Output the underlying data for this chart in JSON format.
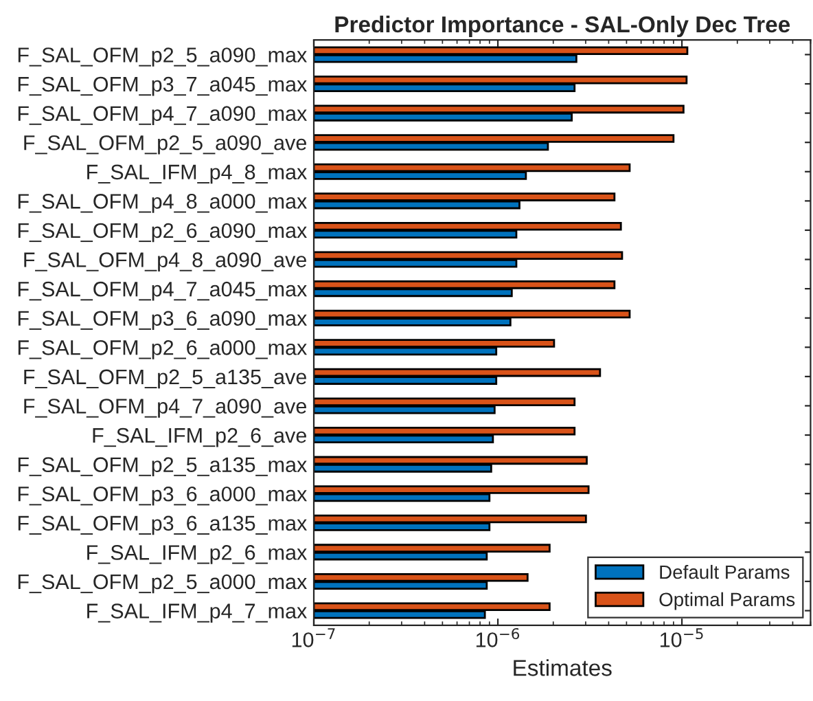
{
  "chart_data": {
    "type": "bar",
    "orientation": "horizontal",
    "title": "Predictor Importance - SAL-Only Dec Tree",
    "xlabel": "Estimates",
    "categories": [
      "F_SAL_OFM_p2_5_a090_max",
      "F_SAL_OFM_p3_7_a045_max",
      "F_SAL_OFM_p4_7_a090_max",
      "F_SAL_OFM_p2_5_a090_ave",
      "F_SAL_IFM_p4_8_max",
      "F_SAL_OFM_p4_8_a000_max",
      "F_SAL_OFM_p2_6_a090_max",
      "F_SAL_OFM_p4_8_a090_ave",
      "F_SAL_OFM_p4_7_a045_max",
      "F_SAL_OFM_p3_6_a090_max",
      "F_SAL_OFM_p2_6_a000_max",
      "F_SAL_OFM_p2_5_a135_ave",
      "F_SAL_OFM_p4_7_a090_ave",
      "F_SAL_IFM_p2_6_ave",
      "F_SAL_OFM_p2_5_a135_max",
      "F_SAL_OFM_p3_6_a000_max",
      "F_SAL_OFM_p3_6_a135_max",
      "F_SAL_IFM_p2_6_max",
      "F_SAL_OFM_p2_5_a000_max",
      "F_SAL_IFM_p4_7_max"
    ],
    "series": [
      {
        "name": "Default Params",
        "color": "#0072bd",
        "values": [
          2.67e-06,
          2.61e-06,
          2.52e-06,
          1.87e-06,
          1.42e-06,
          1.31e-06,
          1.26e-06,
          1.26e-06,
          1.19e-06,
          1.17e-06,
          9.8e-07,
          9.8e-07,
          9.6e-07,
          9.4e-07,
          9.2e-07,
          9e-07,
          9e-07,
          8.7e-07,
          8.7e-07,
          8.5e-07
        ]
      },
      {
        "name": "Optimal Params",
        "color": "#d95319",
        "values": [
          1.07e-05,
          1.06e-05,
          1.02e-05,
          9e-06,
          5.2e-06,
          4.3e-06,
          4.66e-06,
          4.73e-06,
          4.3e-06,
          5.2e-06,
          2.02e-06,
          3.59e-06,
          2.61e-06,
          2.61e-06,
          3.04e-06,
          3.11e-06,
          3.01e-06,
          1.91e-06,
          1.45e-06,
          1.91e-06
        ]
      }
    ],
    "log": "x",
    "xlim": [
      1e-07,
      5e-05
    ],
    "xticks": [
      {
        "value": 1e-07,
        "label": "10$^{−7}$"
      },
      {
        "value": 1e-06,
        "label": "10$^{−6}$"
      },
      {
        "value": 1e-05,
        "label": "10$^{−5}$"
      }
    ],
    "grid": false,
    "legend": "bottom right"
  }
}
